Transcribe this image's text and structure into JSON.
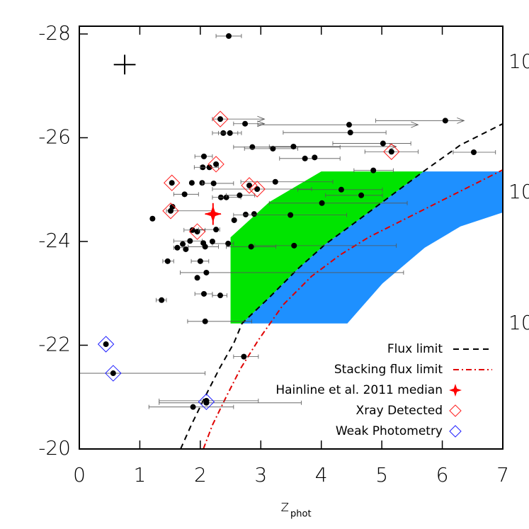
{
  "chart_data": {
    "type": "scatter",
    "xlabel": "z",
    "xlabel_sub": "phot",
    "xlim": [
      0,
      7
    ],
    "xticks": [
      0,
      1,
      2,
      3,
      4,
      5,
      6,
      7
    ],
    "ylim": [
      -20,
      -28.15
    ],
    "yticks": [
      -28,
      -26,
      -24,
      -22,
      -20
    ],
    "right_labels": [
      "10",
      "10",
      "10"
    ],
    "regions": [
      {
        "color": "#1e90ff",
        "x": [
          2.69,
          3.14,
          3.61,
          4.07,
          4.54,
          5.01,
          5.69,
          7.0,
          7.0,
          6.3,
          5.71,
          5.01,
          4.43
        ],
        "y": [
          -22.42,
          -22.92,
          -23.47,
          -23.95,
          -24.35,
          -24.76,
          -25.35,
          -25.35,
          -24.56,
          -24.29,
          -23.88,
          -23.19,
          -22.42
        ]
      },
      {
        "color": "#00e400",
        "x": [
          2.5,
          2.69,
          3.14,
          3.61,
          4.07,
          4.54,
          5.01,
          5.69,
          4.0,
          3.14,
          2.5
        ],
        "y": [
          -22.42,
          -22.42,
          -22.92,
          -23.47,
          -23.95,
          -24.35,
          -24.76,
          -25.35,
          -25.35,
          -24.76,
          -24.08
        ]
      }
    ],
    "sources": {
      "color": "#000000",
      "x": [
        2.47,
        2.33,
        2.74,
        4.46,
        6.05,
        2.38,
        2.49,
        4.48,
        2.86,
        3.2,
        3.54,
        5.02,
        5.16,
        6.52,
        2.06,
        2.04,
        2.15,
        2.26,
        3.73,
        3.89,
        4.86,
        3.24,
        1.53,
        1.86,
        2.03,
        2.22,
        2.81,
        2.94,
        1.74,
        4.33,
        4.66,
        2.34,
        2.43,
        2.65,
        1.54,
        1.51,
        4.01,
        2.56,
        2.75,
        2.89,
        3.49,
        1.21,
        1.87,
        1.95,
        2.26,
        2.46,
        1.83,
        1.71,
        1.62,
        1.76,
        2.05,
        2.08,
        2.84,
        3.55,
        2.2,
        1.46,
        2.0,
        2.1,
        1.95,
        2.33,
        2.06,
        1.36,
        2.08,
        2.72,
        0.44,
        0.56,
        1.88,
        2.1,
        2.1
      ],
      "y": [
        -27.96,
        -26.36,
        -26.27,
        -26.25,
        -26.33,
        -26.09,
        -26.09,
        -26.1,
        -25.82,
        -25.79,
        -25.83,
        -25.89,
        -25.73,
        -25.72,
        -25.64,
        -25.43,
        -25.43,
        -25.49,
        -25.6,
        -25.62,
        -25.37,
        -25.15,
        -25.13,
        -25.13,
        -25.13,
        -25.12,
        -25.08,
        -25.01,
        -24.91,
        -25.0,
        -24.89,
        -24.85,
        -24.85,
        -24.89,
        -24.67,
        -24.59,
        -24.74,
        -24.41,
        -24.52,
        -24.53,
        -24.51,
        -24.44,
        -24.22,
        -24.19,
        -24.23,
        -23.96,
        -24.01,
        -23.95,
        -23.88,
        -23.85,
        -23.97,
        -23.9,
        -23.9,
        -23.92,
        -24.0,
        -23.62,
        -23.62,
        -23.4,
        -23.3,
        -22.96,
        -22.99,
        -22.87,
        -22.46,
        -21.78,
        -22.02,
        -21.46,
        -20.81,
        -20.93,
        -20.89
      ],
      "x_min": [
        2.26,
        2.2,
        2.55,
        2.95,
        4.9,
        2.2,
        2.3,
        3.37,
        2.55,
        2.73,
        3.14,
        4.19,
        4.72,
        6.18,
        1.91,
        1.9,
        2.0,
        null,
        3.31,
        null,
        4.54,
        2.67,
        null,
        null,
        null,
        2.03,
        null,
        2.2,
        1.56,
        3.61,
        4.07,
        null,
        2.2,
        2.43,
        null,
        1.44,
        3.14,
        null,
        null,
        null,
        2.55,
        null,
        1.73,
        null,
        1.97,
        2.2,
        1.56,
        null,
        1.56,
        null,
        null,
        1.8,
        2.43,
        2.9,
        null,
        1.38,
        1.85,
        1.67,
        null,
        2.2,
        1.91,
        1.27,
        1.79,
        2.55,
        null,
        0.0,
        1.15,
        1.32,
        1.32
      ],
      "x_max": [
        2.68,
        3.06,
        3.06,
        5.6,
        6.36,
        2.62,
        2.68,
        5.07,
        4.31,
        3.61,
        5.24,
        5.48,
        5.6,
        6.88,
        2.2,
        2.15,
        2.3,
        null,
        4.31,
        null,
        5.19,
        4.19,
        null,
        null,
        null,
        2.55,
        null,
        3.84,
        1.97,
        5.01,
        5.01,
        null,
        2.67,
        2.9,
        null,
        2.2,
        5.42,
        null,
        null,
        null,
        4.42,
        null,
        2.08,
        null,
        2.32,
        2.55,
        2.03,
        null,
        1.8,
        null,
        null,
        2.3,
        3.25,
        5.24,
        null,
        1.56,
        2.14,
        5.36,
        null,
        2.44,
        2.2,
        1.44,
        2.85,
        2.96,
        null,
        2.08,
        2.55,
        2.96,
        3.67
      ],
      "lower_limit": [
        1,
        2,
        3,
        4,
        10
      ]
    },
    "typical_error": {
      "x": 0.75,
      "y": -27.41,
      "xerr": 0.18,
      "yerr": 0.19
    },
    "series": [
      {
        "name": "Flux limit",
        "kind": "line",
        "color": "#000000",
        "dash": "8 6",
        "x": [
          1.674,
          1.85,
          2.08,
          2.32,
          2.55,
          2.69,
          3.14,
          3.61,
          4.07,
          4.54,
          5.01,
          5.69,
          6.3,
          7.0
        ],
        "y": [
          -20,
          -20.46,
          -21.01,
          -21.56,
          -22.03,
          -22.42,
          -22.92,
          -23.47,
          -23.95,
          -24.35,
          -24.76,
          -25.35,
          -25.86,
          -26.27
        ]
      },
      {
        "name": "Stacking flux limit",
        "kind": "line",
        "color": "#e00000",
        "dash": "8 4 2 4",
        "x": [
          2.05,
          2.2,
          2.43,
          2.67,
          2.96,
          3.37,
          3.84,
          4.31,
          4.78,
          5.48,
          6.18,
          7.0
        ],
        "y": [
          -20,
          -20.46,
          -21.01,
          -21.56,
          -22.1,
          -22.78,
          -23.33,
          -23.74,
          -24.08,
          -24.49,
          -24.9,
          -25.38
        ]
      },
      {
        "name": "Hainline et al. 2011 median",
        "kind": "star",
        "color": "#ff0000",
        "x": [
          2.21
        ],
        "y": [
          -24.53
        ],
        "x_min": [
          2.08
        ],
        "x_max": [
          2.34
        ],
        "y_min": [
          -24.32
        ],
        "y_max": [
          -24.74
        ]
      },
      {
        "name": "Xray Detected",
        "kind": "diamond",
        "color": "#ff2020",
        "x": [
          2.33,
          5.16,
          2.26,
          1.53,
          2.81,
          2.94,
          1.51,
          1.95
        ],
        "y": [
          -26.36,
          -25.73,
          -25.49,
          -25.13,
          -25.08,
          -25.01,
          -24.59,
          -24.19
        ]
      },
      {
        "name": "Weak Photometry",
        "kind": "diamond",
        "color": "#2020ff",
        "x": [
          0.44,
          0.56,
          2.1
        ],
        "y": [
          -22.02,
          -21.46,
          -20.91
        ]
      }
    ],
    "legend": "lower right"
  }
}
